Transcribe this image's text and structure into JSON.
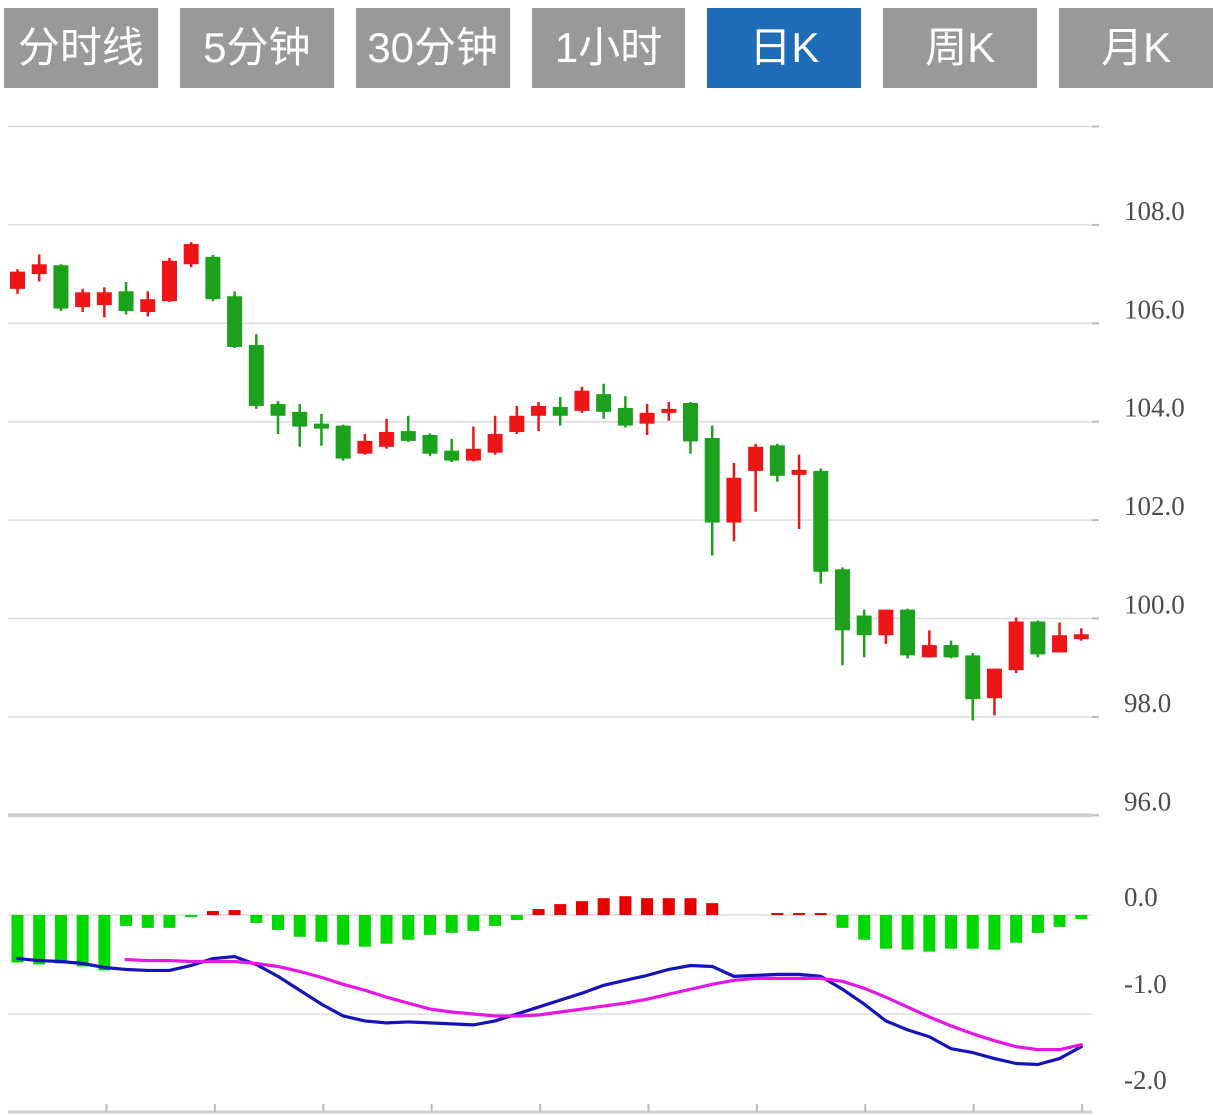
{
  "toolbar": {
    "buttons": [
      {
        "label": "分时线",
        "active": false
      },
      {
        "label": "5分钟",
        "active": false
      },
      {
        "label": "30分钟",
        "active": false
      },
      {
        "label": "1小时",
        "active": false
      },
      {
        "label": "日K",
        "active": true
      },
      {
        "label": "周K",
        "active": false
      },
      {
        "label": "月K",
        "active": false
      }
    ],
    "colors": {
      "inactive_bg": "#999999",
      "active_bg": "#1e6cb8",
      "text": "#ffffff"
    }
  },
  "chart_data": {
    "type": "candlestick_with_macd",
    "title": "",
    "legend_position": "none",
    "grid": true,
    "price_panel": {
      "ylim": [
        96,
        110
      ],
      "gridline_values": [
        110,
        108,
        106,
        104,
        102,
        100,
        98,
        96
      ],
      "separator_value": 96,
      "axis_labels": [
        {
          "text": "108.0",
          "value": 108
        },
        {
          "text": "106.0",
          "value": 106
        },
        {
          "text": "104.0",
          "value": 104
        },
        {
          "text": "102.0",
          "value": 102
        },
        {
          "text": "100.0",
          "value": 100
        },
        {
          "text": "98.0",
          "value": 98
        },
        {
          "text": "96.0",
          "value": 96
        }
      ],
      "candles_ohlc": [
        [
          106.7,
          107.1,
          106.6,
          107.05
        ],
        [
          107.0,
          107.4,
          106.85,
          107.2
        ],
        [
          107.18,
          107.2,
          106.25,
          106.3
        ],
        [
          106.33,
          106.7,
          106.23,
          106.63
        ],
        [
          106.37,
          106.73,
          106.12,
          106.63
        ],
        [
          106.65,
          106.84,
          106.18,
          106.25
        ],
        [
          106.23,
          106.65,
          106.14,
          106.49
        ],
        [
          106.45,
          107.33,
          106.43,
          107.27
        ],
        [
          107.2,
          107.65,
          107.14,
          107.61
        ],
        [
          107.35,
          107.39,
          106.45,
          106.49
        ],
        [
          106.55,
          106.65,
          105.5,
          105.52
        ],
        [
          105.56,
          105.78,
          104.26,
          104.32
        ],
        [
          104.36,
          104.42,
          103.75,
          104.12
        ],
        [
          104.2,
          104.36,
          103.49,
          103.9
        ],
        [
          103.96,
          104.16,
          103.51,
          103.86
        ],
        [
          103.92,
          103.94,
          103.21,
          103.25
        ],
        [
          103.35,
          103.75,
          103.33,
          103.61
        ],
        [
          103.49,
          104.06,
          103.45,
          103.79
        ],
        [
          103.81,
          104.12,
          103.59,
          103.61
        ],
        [
          103.73,
          103.76,
          103.3,
          103.35
        ],
        [
          103.41,
          103.65,
          103.18,
          103.21
        ],
        [
          103.21,
          103.9,
          103.19,
          103.45
        ],
        [
          103.37,
          104.12,
          103.33,
          103.75
        ],
        [
          103.79,
          104.32,
          103.75,
          104.12
        ],
        [
          104.12,
          104.4,
          103.81,
          104.32
        ],
        [
          104.3,
          104.5,
          103.92,
          104.12
        ],
        [
          104.22,
          104.71,
          104.18,
          104.63
        ],
        [
          104.56,
          104.77,
          104.06,
          104.2
        ],
        [
          104.28,
          104.52,
          103.88,
          103.92
        ],
        [
          103.96,
          104.36,
          103.73,
          104.18
        ],
        [
          104.18,
          104.4,
          104.02,
          104.26
        ],
        [
          104.38,
          104.4,
          103.35,
          103.6
        ],
        [
          103.67,
          103.92,
          101.28,
          101.95
        ],
        [
          101.95,
          103.16,
          101.57,
          102.86
        ],
        [
          103.0,
          103.55,
          102.17,
          103.49
        ],
        [
          103.52,
          103.55,
          102.78,
          102.9
        ],
        [
          102.92,
          103.33,
          101.82,
          103.02
        ],
        [
          103.0,
          103.05,
          100.71,
          100.95
        ],
        [
          101.0,
          101.04,
          99.05,
          99.76
        ],
        [
          100.06,
          100.18,
          99.21,
          99.66
        ],
        [
          99.66,
          100.18,
          99.48,
          100.18
        ],
        [
          100.18,
          100.2,
          99.19,
          99.25
        ],
        [
          99.21,
          99.76,
          99.21,
          99.46
        ],
        [
          99.46,
          99.55,
          99.19,
          99.21
        ],
        [
          99.25,
          99.3,
          97.93,
          98.36
        ],
        [
          98.38,
          98.98,
          98.03,
          98.98
        ],
        [
          98.95,
          100.02,
          98.89,
          99.94
        ],
        [
          99.94,
          99.96,
          99.21,
          99.27
        ],
        [
          99.31,
          99.92,
          99.31,
          99.66
        ],
        [
          99.58,
          99.8,
          99.55,
          99.68
        ]
      ]
    },
    "macd_panel": {
      "ylim": [
        -2,
        0.3
      ],
      "gridline_values": [
        0,
        -1
      ],
      "bottom_axis_value": -2,
      "axis_labels": [
        {
          "text": "0.0",
          "value": 0
        },
        {
          "text": "-1.0",
          "value": -1
        },
        {
          "text": "-2.0",
          "value": -2
        }
      ],
      "histogram": [
        -0.48,
        -0.5,
        -0.49,
        -0.52,
        -0.56,
        -0.11,
        -0.13,
        -0.13,
        -0.02,
        0.04,
        0.05,
        -0.08,
        -0.15,
        -0.22,
        -0.27,
        -0.3,
        -0.32,
        -0.29,
        -0.25,
        -0.2,
        -0.18,
        -0.16,
        -0.11,
        -0.05,
        0.06,
        0.11,
        0.14,
        0.17,
        0.19,
        0.17,
        0.17,
        0.17,
        0.12,
        0.0,
        0.0,
        0.02,
        0.02,
        0.02,
        -0.13,
        -0.25,
        -0.34,
        -0.35,
        -0.37,
        -0.34,
        -0.34,
        -0.35,
        -0.28,
        -0.18,
        -0.12,
        -0.04
      ],
      "series": [
        {
          "name": "DIF",
          "color": "#1414b8",
          "values": [
            -0.44,
            -0.46,
            -0.47,
            -0.49,
            -0.53,
            -0.55,
            -0.56,
            -0.56,
            -0.51,
            -0.44,
            -0.42,
            -0.5,
            -0.62,
            -0.76,
            -0.9,
            -1.02,
            -1.07,
            -1.09,
            -1.08,
            -1.09,
            -1.1,
            -1.11,
            -1.07,
            -1.0,
            -0.93,
            -0.86,
            -0.79,
            -0.71,
            -0.66,
            -0.61,
            -0.55,
            -0.51,
            -0.52,
            -0.62,
            -0.61,
            -0.6,
            -0.6,
            -0.62,
            -0.75,
            -0.9,
            -1.07,
            -1.16,
            -1.23,
            -1.35,
            -1.39,
            -1.45,
            -1.5,
            -1.51,
            -1.45,
            -1.33
          ]
        },
        {
          "name": "DEA",
          "color": "#e716e7",
          "values": [
            null,
            null,
            null,
            null,
            null,
            -0.45,
            -0.46,
            -0.46,
            -0.47,
            -0.47,
            -0.47,
            -0.49,
            -0.52,
            -0.57,
            -0.63,
            -0.7,
            -0.76,
            -0.83,
            -0.89,
            -0.95,
            -0.98,
            -1.0,
            -1.02,
            -1.02,
            -1.01,
            -0.98,
            -0.95,
            -0.92,
            -0.89,
            -0.85,
            -0.8,
            -0.75,
            -0.7,
            -0.66,
            -0.64,
            -0.64,
            -0.64,
            -0.64,
            -0.67,
            -0.74,
            -0.83,
            -0.93,
            -1.03,
            -1.12,
            -1.2,
            -1.27,
            -1.33,
            -1.36,
            -1.36,
            -1.31
          ]
        }
      ]
    },
    "colors": {
      "candle_up": "#ed1515",
      "candle_down": "#1ba11b",
      "macd_up": "#e60000",
      "macd_down": "#00d800",
      "grid": "#dedede",
      "separator": "#d0d0d0",
      "axis_text": "#4c4c4c"
    }
  }
}
